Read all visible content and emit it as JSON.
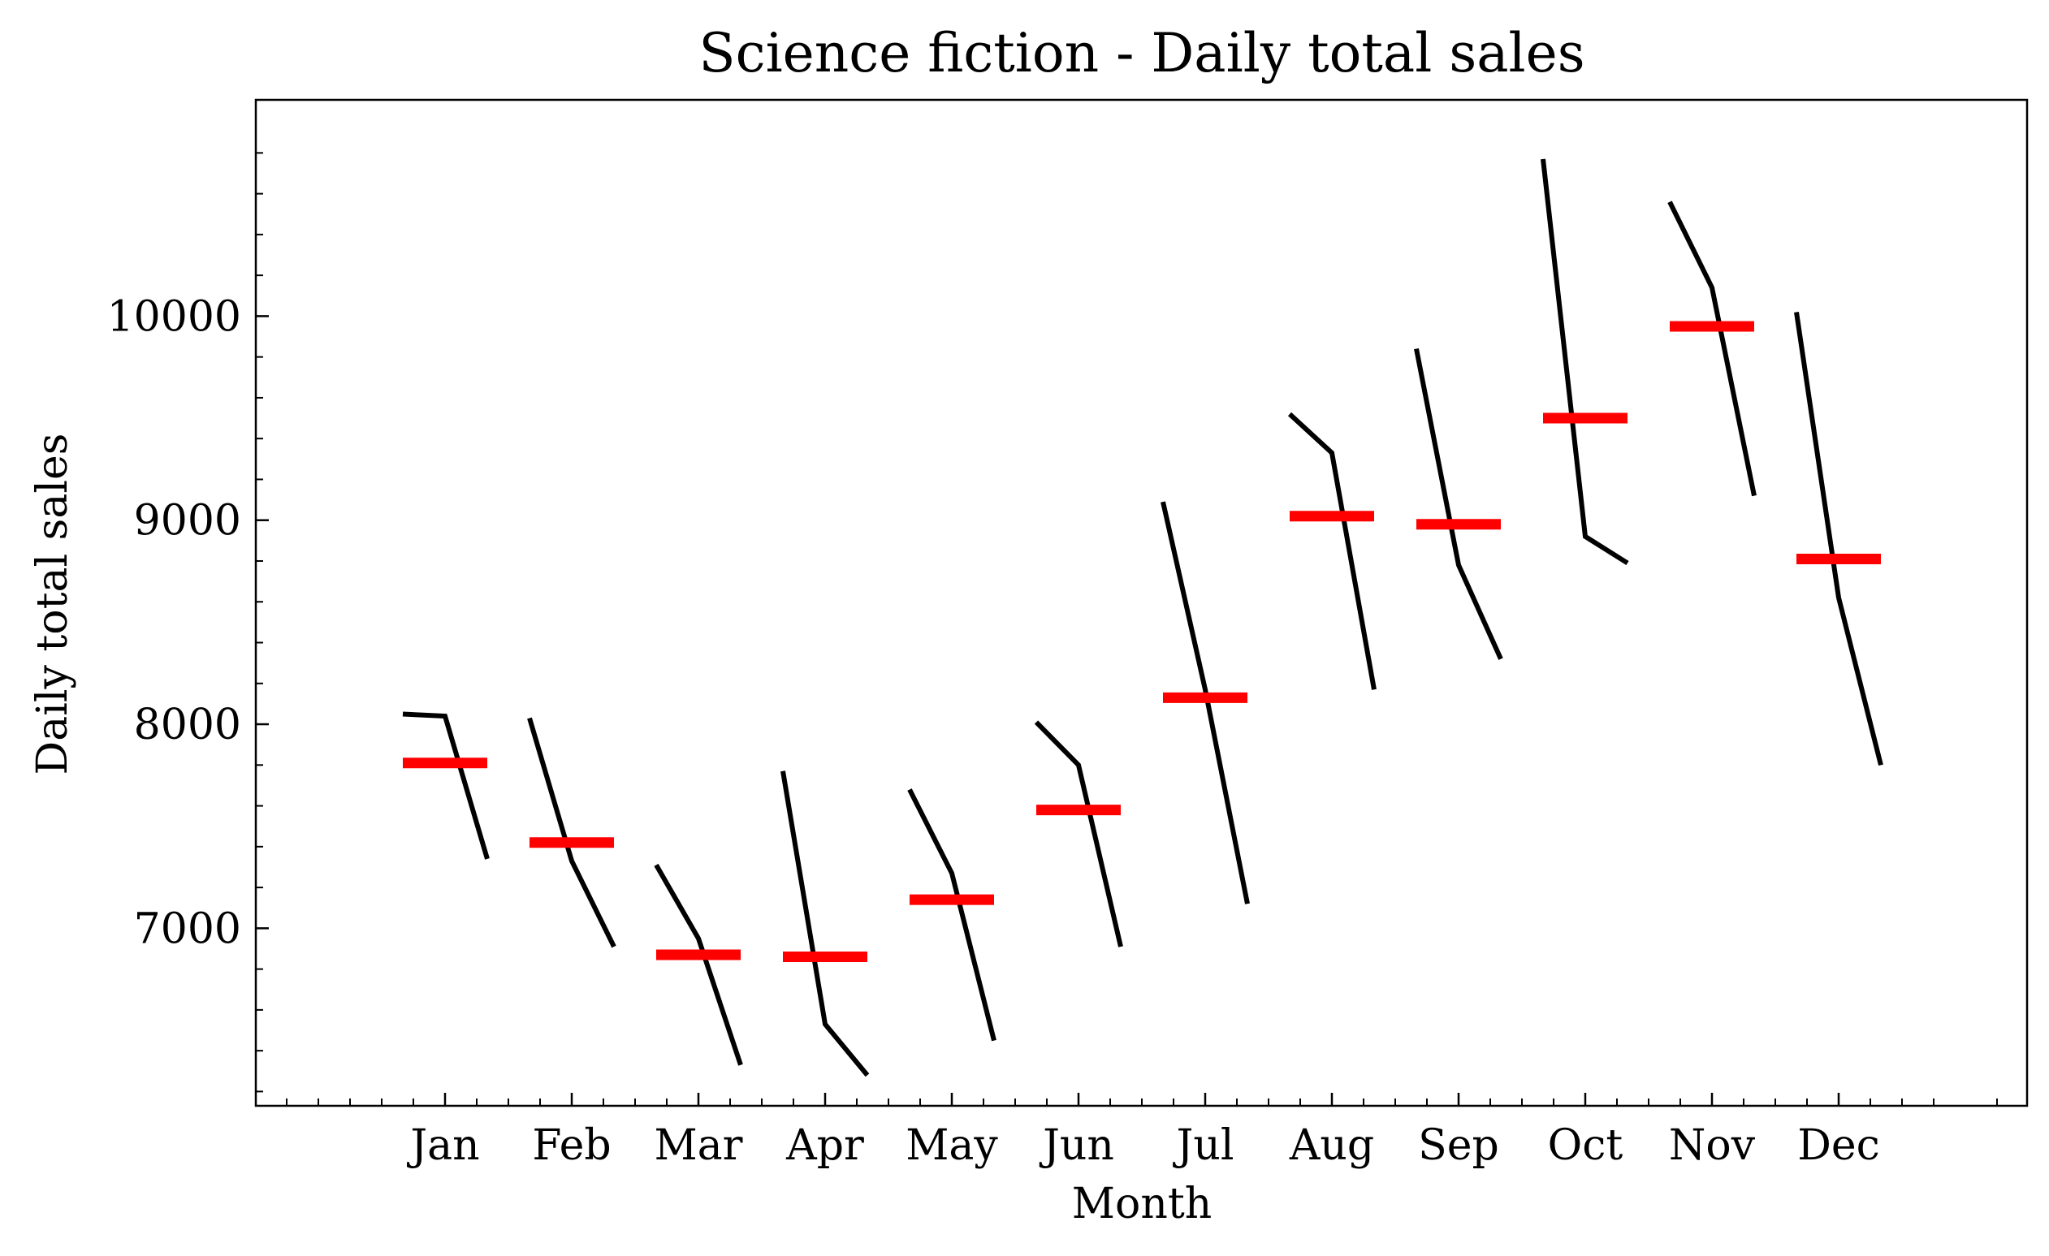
{
  "chart_data": {
    "type": "line",
    "title": "Science fiction - Daily total sales",
    "xlabel": "Month",
    "ylabel": "Daily total sales",
    "categories": [
      "Jan",
      "Feb",
      "Mar",
      "Apr",
      "May",
      "Jun",
      "Jul",
      "Aug",
      "Sep",
      "Oct",
      "Nov",
      "Dec"
    ],
    "yticks": [
      7000,
      8000,
      9000,
      10000
    ],
    "ylim": [
      6130,
      11060
    ],
    "grid": false,
    "subseries": [
      [
        8050,
        8040,
        7340
      ],
      [
        8030,
        7330,
        6910
      ],
      [
        7310,
        6950,
        6330
      ],
      [
        7770,
        6530,
        6280
      ],
      [
        7680,
        7270,
        6450
      ],
      [
        8010,
        7800,
        6910
      ],
      [
        9090,
        8170,
        7120
      ],
      [
        9520,
        9330,
        8170
      ],
      [
        9840,
        8780,
        8320
      ],
      [
        10770,
        8920,
        8790
      ],
      [
        10560,
        10140,
        9120
      ],
      [
        10020,
        8620,
        7800
      ]
    ],
    "means": [
      7810,
      7420,
      6870,
      6860,
      7140,
      7580,
      8130,
      9020,
      8980,
      9500,
      9950,
      8810
    ],
    "colors": {
      "subseries": "#000000",
      "mean": "#ff0000"
    }
  }
}
